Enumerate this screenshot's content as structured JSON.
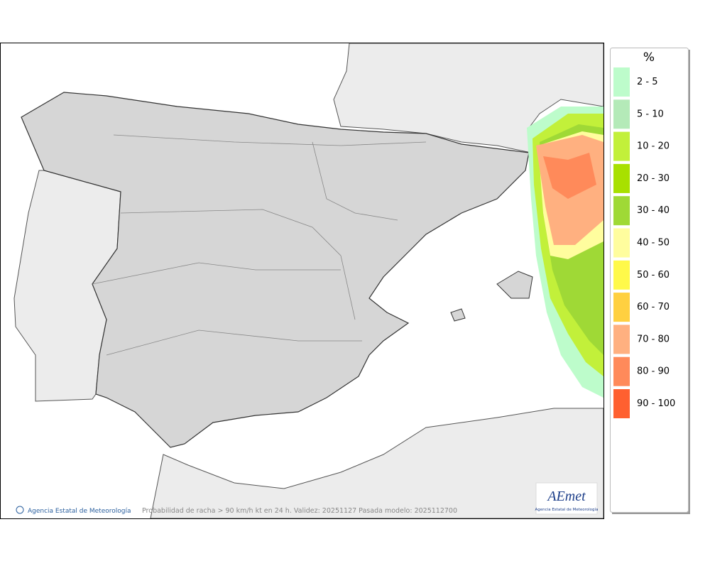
{
  "map": {
    "caption": "Probabilidad de racha > 90 km/h kt en 24 h. Validez: 20251127 Pasada modelo: 2025112700",
    "credit": "Agencia Estatal de Meteorología",
    "logo": {
      "name": "AEmet",
      "subtitle": "Agencia Estatal de Meteorología"
    }
  },
  "legend": {
    "title": "%",
    "items": [
      {
        "label": "2 - 5",
        "color": "#bdfccb"
      },
      {
        "label": "5 - 10",
        "color": "#b4eab8"
      },
      {
        "label": "10 - 20",
        "color": "#c2f03a"
      },
      {
        "label": "20 - 30",
        "color": "#a8e000"
      },
      {
        "label": "30 - 40",
        "color": "#9fd936"
      },
      {
        "label": "40 - 50",
        "color": "#fffd9e"
      },
      {
        "label": "50 - 60",
        "color": "#fff94a"
      },
      {
        "label": "60 - 70",
        "color": "#ffd040"
      },
      {
        "label": "70 - 80",
        "color": "#ffb080"
      },
      {
        "label": "80 - 90",
        "color": "#ff8a5a"
      },
      {
        "label": "90 - 100",
        "color": "#ff6030"
      }
    ]
  }
}
